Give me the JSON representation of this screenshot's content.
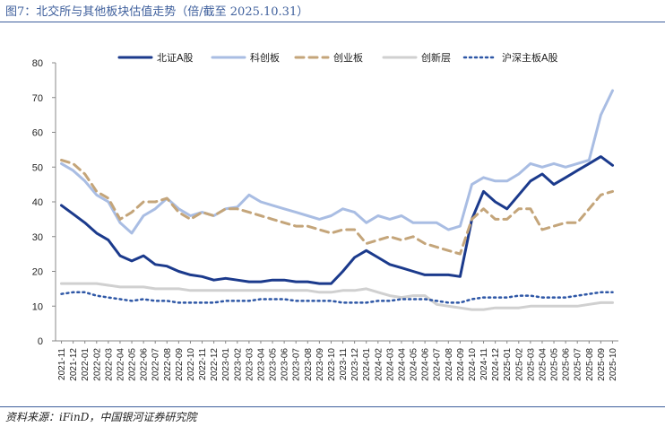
{
  "header": {
    "title": "图7：北交所与其他板块估值走势（倍/截至 2025.10.31）"
  },
  "footer": {
    "source": "资料来源：iFinD，中国银河证券研究院"
  },
  "chart_data": {
    "type": "line",
    "title": "",
    "xlabel": "",
    "ylabel": "",
    "ylim": [
      0,
      80
    ],
    "yticks": [
      0,
      10,
      20,
      30,
      40,
      50,
      60,
      70,
      80
    ],
    "legend_position": "top-center",
    "categories": [
      "2021-11",
      "2021-12",
      "2022-01",
      "2022-02",
      "2022-03",
      "2022-04",
      "2022-05",
      "2022-06",
      "2022-07",
      "2022-08",
      "2022-09",
      "2022-10",
      "2022-11",
      "2022-12",
      "2023-01",
      "2023-02",
      "2023-03",
      "2023-04",
      "2023-05",
      "2023-06",
      "2023-07",
      "2023-08",
      "2023-09",
      "2023-10",
      "2023-11",
      "2023-12",
      "2024-01",
      "2024-02",
      "2024-03",
      "2024-04",
      "2024-05",
      "2024-06",
      "2024-07",
      "2024-08",
      "2024-09",
      "2024-10",
      "2024-11",
      "2024-12",
      "2025-01",
      "2025-02",
      "2025-03",
      "2025-04",
      "2025-05",
      "2025-06",
      "2025-07",
      "2025-08",
      "2025-09",
      "2025-10"
    ],
    "series": [
      {
        "name": "北证A股",
        "color": "#1b3a8c",
        "style": "solid",
        "width": 3,
        "values": [
          39,
          36.5,
          34,
          31,
          29,
          24.5,
          23,
          24.5,
          22,
          21.5,
          20,
          19,
          18.5,
          17.5,
          18,
          17.5,
          17,
          17,
          17.5,
          17.5,
          17,
          17,
          16.5,
          16.5,
          20,
          24,
          26,
          24,
          22,
          21,
          20,
          19,
          19,
          19,
          18.5,
          35,
          43,
          40,
          38,
          42,
          46,
          48,
          45,
          47,
          49,
          51,
          53,
          50.5
        ]
      },
      {
        "name": "科创板",
        "color": "#a9bde3",
        "style": "solid",
        "width": 3,
        "values": [
          51,
          49,
          46,
          42,
          40,
          34,
          31,
          36,
          38,
          41,
          38,
          36,
          37,
          36,
          38,
          38.5,
          42,
          40,
          39,
          38,
          37,
          36,
          35,
          36,
          38,
          37,
          34,
          36,
          35,
          36,
          34,
          34,
          34,
          32,
          33,
          45,
          47,
          46,
          46,
          48,
          51,
          50,
          51,
          50,
          51,
          52,
          65,
          72
        ]
      },
      {
        "name": "创业板",
        "color": "#c4a57a",
        "style": "dash",
        "width": 3,
        "values": [
          52,
          51,
          48,
          43,
          41,
          35,
          37,
          40,
          40,
          41,
          37,
          35,
          37,
          36,
          38,
          38,
          37,
          36,
          35,
          34,
          33,
          33,
          32,
          31,
          32,
          32,
          28,
          29,
          30,
          29,
          30,
          28,
          27,
          26,
          25,
          35,
          38,
          35,
          35,
          38,
          38,
          32,
          33,
          34,
          34,
          38,
          42,
          43
        ]
      },
      {
        "name": "创新层",
        "color": "#d0d0d0",
        "style": "solid",
        "width": 3,
        "values": [
          16.5,
          16.5,
          16.5,
          16.5,
          16,
          15.5,
          15.5,
          15.5,
          15,
          15,
          15,
          14.5,
          14.5,
          14.5,
          14.5,
          14.5,
          14.5,
          14.5,
          14.5,
          14.5,
          14.5,
          14.5,
          14,
          14,
          14.5,
          14.5,
          15,
          14,
          13,
          12.5,
          13,
          13,
          10.5,
          10,
          9.5,
          9,
          9,
          9.5,
          9.5,
          9.5,
          10,
          10,
          10,
          10,
          10,
          10.5,
          11,
          11
        ]
      },
      {
        "name": "沪深主板A股",
        "color": "#2e57a6",
        "style": "dot",
        "width": 2.5,
        "values": [
          13.5,
          14,
          14,
          13,
          12.5,
          12,
          11.5,
          12,
          11.5,
          11.5,
          11,
          11,
          11,
          11,
          11.5,
          11.5,
          11.5,
          12,
          12,
          12,
          11.5,
          11.5,
          11.5,
          11.5,
          11,
          11,
          11,
          11.5,
          11.5,
          12,
          12,
          12,
          11.5,
          11,
          11,
          12,
          12.5,
          12.5,
          12.5,
          13,
          13,
          12.5,
          12.5,
          12.5,
          13,
          13.5,
          14,
          14
        ]
      }
    ]
  }
}
